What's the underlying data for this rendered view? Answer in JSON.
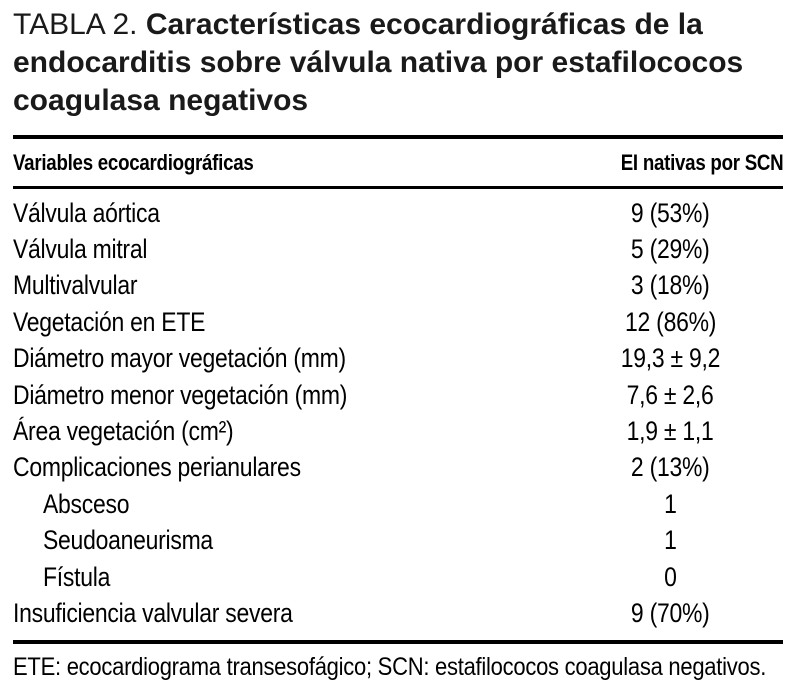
{
  "title": {
    "label": "TABLA 2.",
    "lines": [
      "Características ecocardiográficas de la",
      "endocarditis sobre válvula nativa por estafilococos",
      "coagulasa negativos"
    ]
  },
  "table": {
    "header": {
      "col1": "Variables ecocardiográficas",
      "col2": "EI nativas por SCN"
    },
    "rows": [
      {
        "label": "Válvula aórtica",
        "value": "9 (53%)",
        "indent": false
      },
      {
        "label": "Válvula mitral",
        "value": "5 (29%)",
        "indent": false
      },
      {
        "label": "Multivalvular",
        "value": "3 (18%)",
        "indent": false
      },
      {
        "label": "Vegetación en ETE",
        "value": "12 (86%)",
        "indent": false
      },
      {
        "label": "Diámetro mayor vegetación (mm)",
        "value": "19,3 ± 9,2",
        "indent": false
      },
      {
        "label": "Diámetro menor vegetación (mm)",
        "value": "7,6 ± 2,6",
        "indent": false
      },
      {
        "label": "Área vegetación (cm²)",
        "value": "1,9 ± 1,1",
        "indent": false
      },
      {
        "label": "Complicaciones perianulares",
        "value": "2 (13%)",
        "indent": false
      },
      {
        "label": "Absceso",
        "value": "1",
        "indent": true
      },
      {
        "label": "Seudoaneurisma",
        "value": "1",
        "indent": true
      },
      {
        "label": "Fístula",
        "value": "0",
        "indent": true
      },
      {
        "label": "Insuficiencia valvular severa",
        "value": "9 (70%)",
        "indent": false
      }
    ],
    "footnote": "ETE: ecocardiograma transesofágico; SCN: estafilococos coagulasa negativos."
  },
  "colors": {
    "text": "#000000",
    "background": "#ffffff",
    "rule": "#000000"
  }
}
